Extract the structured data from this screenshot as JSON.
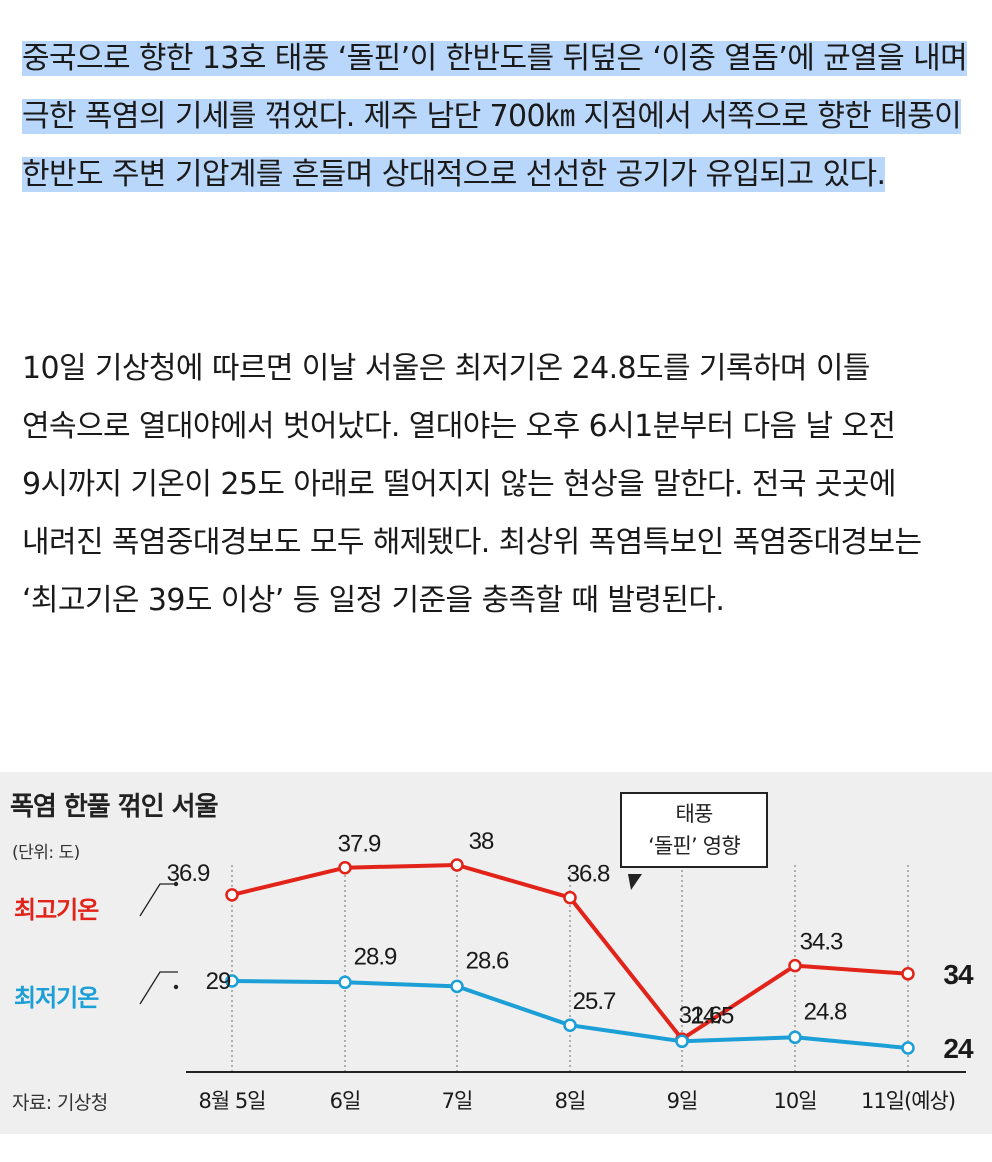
{
  "article": {
    "paragraph1": "중국으로 향한 13호 태풍 ‘돌핀’이 한반도를 뒤덮은 ‘이중 열돔’에 균열을 내며 극한 폭염의 기세를 꺾었다. 제주 남단 700㎞ 지점에서 서쪽으로 향한 태풍이 한반도 주변 기압계를 흔들며 상대적으로 선선한 공기가 유입되고 있다.",
    "paragraph2": "10일 기상청에 따르면 이날 서울은 최저기온 24.8도를 기록하며 이틀 연속으로 열대야에서 벗어났다. 열대야는 오후 6시1분부터 다음 날 오전 9시까지 기온이 25도 아래로 떨어지지 않는 현상을 말한다. 전국 곳곳에 내려진 폭염중대경보도 모두 해제됐다. 최상위 폭염특보인 폭염중대경보는 ‘최고기온 39도 이상’ 등 일정 기준을 충족할 때 발령된다."
  },
  "chart_data": {
    "type": "line",
    "title": "폭염 한풀 꺾인 서울",
    "unit": "(단위: 도)",
    "source": "자료: 기상청",
    "categories": [
      "8월 5일",
      "6일",
      "7일",
      "8일",
      "9일",
      "10일",
      "11일(예상)"
    ],
    "series": [
      {
        "name": "최고기온",
        "values": [
          36.9,
          37.9,
          38,
          36.8,
          31.6,
          34.3,
          34
        ],
        "color": "#e2231a"
      },
      {
        "name": "최저기온",
        "values": [
          29,
          28.9,
          28.6,
          25.7,
          24.5,
          24.8,
          24
        ],
        "color": "#1b9fd6"
      }
    ],
    "value_labels": {
      "high": [
        "36.9",
        "37.9",
        "38",
        "36.8",
        "31.6",
        "34.3",
        "34"
      ],
      "low": [
        "29",
        "28.9",
        "28.6",
        "25.7",
        "24.5",
        "24.8",
        "24"
      ]
    },
    "annotation": {
      "line1": "태풍",
      "line2": "‘돌핀’ 영향"
    },
    "grid": false
  }
}
